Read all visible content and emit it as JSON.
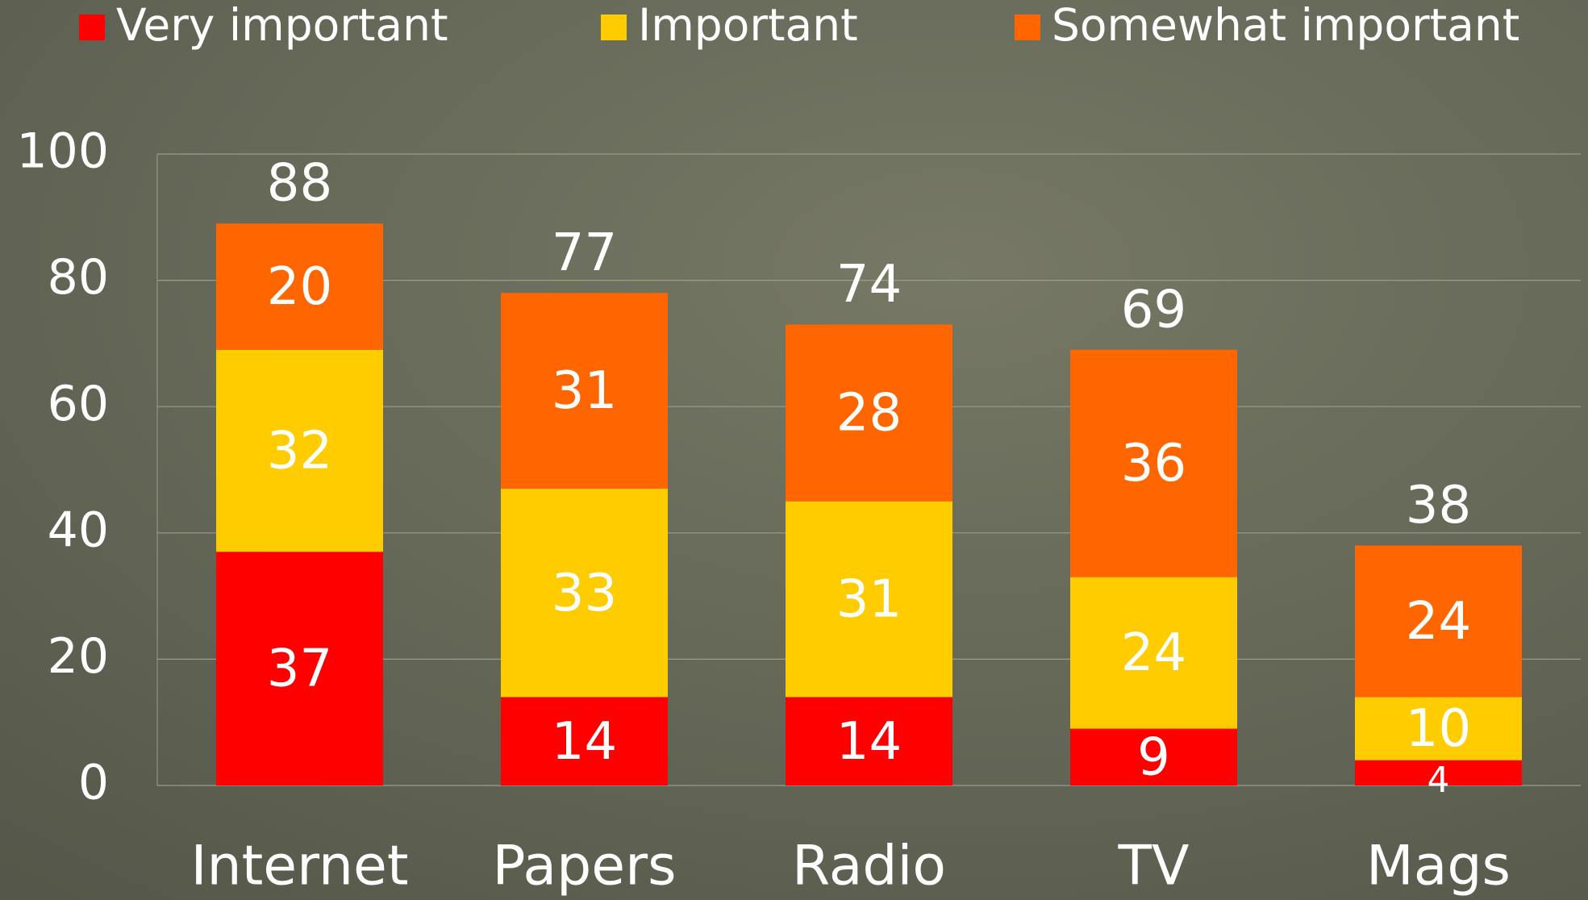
{
  "chart_data": {
    "type": "stacked_bar",
    "categories": [
      "Internet",
      "Papers",
      "Radio",
      "TV",
      "Mags"
    ],
    "series": [
      {
        "name": "Very important",
        "color": "#ff0000",
        "values": [
          37,
          14,
          14,
          9,
          4
        ]
      },
      {
        "name": "Important",
        "color": "#ffcc00",
        "values": [
          32,
          33,
          31,
          24,
          10
        ]
      },
      {
        "name": "Somewhat important",
        "color": "#ff6600",
        "values": [
          20,
          31,
          28,
          36,
          24
        ]
      }
    ],
    "totals": [
      88,
      77,
      74,
      69,
      38
    ],
    "ylim": [
      0,
      100
    ],
    "yticks": [
      0,
      20,
      40,
      60,
      80,
      100
    ],
    "grid": true,
    "legend": "top"
  }
}
